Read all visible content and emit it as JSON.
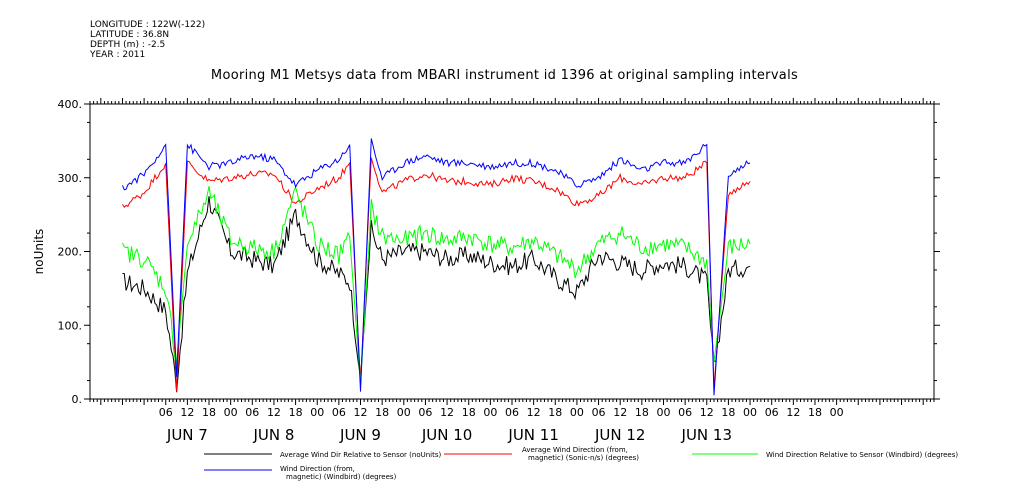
{
  "header": {
    "lines": [
      "LONGITUDE : 122W(-122)",
      "LATITUDE : 36.8N",
      "DEPTH (m) : -2.5",
      "YEAR : 2011"
    ]
  },
  "chart_data": {
    "type": "line",
    "title": "Mooring M1 Metsys data from MBARI instrument id 1396 at original sampling intervals",
    "ylabel": "noUnits",
    "xlabel": "",
    "ylim": [
      0,
      400
    ],
    "yticks": [
      0,
      100,
      200,
      300,
      400
    ],
    "xlim_hours": [
      129,
      363
    ],
    "hour_tick_labels": [
      "06",
      "12",
      "18",
      "00",
      "06",
      "12",
      "18",
      "00",
      "06",
      "12",
      "18",
      "00",
      "06",
      "12",
      "18",
      "00",
      "06",
      "12",
      "18",
      "00",
      "06",
      "12",
      "18",
      "00",
      "06",
      "12",
      "18",
      "00",
      "06",
      "12",
      "18",
      "00"
    ],
    "day_labels": [
      "JUN  7",
      "JUN  8",
      "JUN  9",
      "JUN 10",
      "JUN 11",
      "JUN 12",
      "JUN 13"
    ],
    "x": [
      "2011-06-06 18:00",
      "2011-06-07 00:00",
      "2011-06-07 06:00",
      "2011-06-07 09:00",
      "2011-06-07 12:00",
      "2011-06-07 18:00",
      "2011-06-08 00:00",
      "2011-06-08 06:00",
      "2011-06-08 12:00",
      "2011-06-08 18:00",
      "2011-06-09 00:00",
      "2011-06-09 06:00",
      "2011-06-09 09:00",
      "2011-06-09 12:00",
      "2011-06-09 15:00",
      "2011-06-09 18:00",
      "2011-06-10 00:00",
      "2011-06-10 06:00",
      "2011-06-10 12:00",
      "2011-06-10 18:00",
      "2011-06-11 00:00",
      "2011-06-11 06:00",
      "2011-06-11 12:00",
      "2011-06-11 18:00",
      "2011-06-12 00:00",
      "2011-06-12 06:00",
      "2011-06-12 12:00",
      "2011-06-12 18:00",
      "2011-06-13 00:00",
      "2011-06-13 06:00",
      "2011-06-13 12:00",
      "2011-06-13 14:00",
      "2011-06-13 18:00",
      "2011-06-14 00:00"
    ],
    "series": [
      {
        "name": "Average Wind Dir Relative to Sensor (noUnits)",
        "color": "#000000",
        "values": [
          160,
          150,
          120,
          20,
          170,
          270,
          200,
          190,
          180,
          250,
          190,
          170,
          160,
          30,
          230,
          190,
          200,
          200,
          190,
          195,
          185,
          180,
          190,
          165,
          145,
          195,
          185,
          175,
          185,
          180,
          160,
          40,
          175,
          180
        ]
      },
      {
        "name": "Average Wind Direction (from, magnetic) (Sonic-n/s) (degrees)",
        "color": "#ff0000",
        "values": [
          260,
          280,
          320,
          10,
          320,
          295,
          300,
          305,
          305,
          265,
          285,
          300,
          320,
          20,
          330,
          280,
          295,
          305,
          295,
          295,
          290,
          300,
          295,
          285,
          265,
          275,
          300,
          290,
          300,
          300,
          320,
          15,
          280,
          295
        ]
      },
      {
        "name": "Wind Direction Relative to Sensor (Windbird) (degrees)",
        "color": "#00ff00",
        "values": [
          200,
          190,
          150,
          50,
          210,
          280,
          215,
          205,
          200,
          280,
          210,
          195,
          220,
          20,
          260,
          220,
          215,
          225,
          215,
          220,
          210,
          205,
          215,
          195,
          175,
          210,
          225,
          205,
          210,
          205,
          185,
          50,
          205,
          210
        ]
      },
      {
        "name": "Wind Direction (from, magnetic) (Windbird) (degrees)",
        "color": "#0000ff",
        "values": [
          285,
          305,
          345,
          30,
          345,
          315,
          320,
          330,
          325,
          290,
          310,
          325,
          345,
          10,
          350,
          300,
          320,
          330,
          320,
          320,
          315,
          320,
          320,
          310,
          290,
          300,
          325,
          310,
          320,
          320,
          345,
          5,
          305,
          320
        ]
      }
    ],
    "legend_placement": "bottom",
    "grid": false
  }
}
